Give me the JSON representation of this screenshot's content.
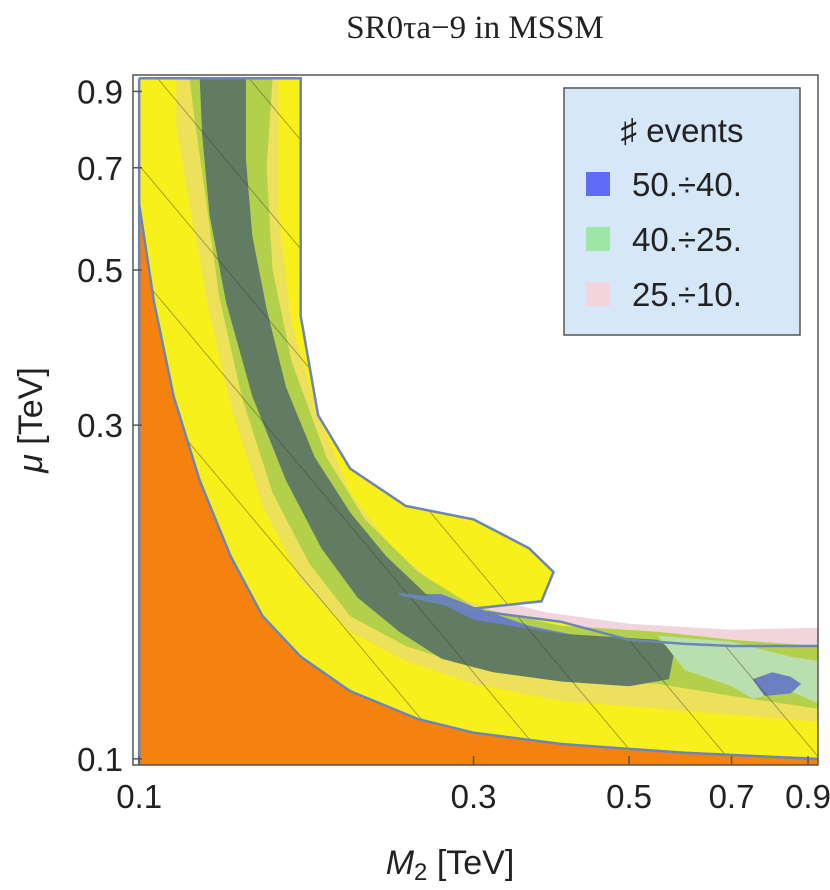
{
  "chart_data": {
    "type": "contour",
    "title": "SR0τa−9 in MSSM",
    "xlabel_symbol": "M",
    "xlabel_sub": "2",
    "xlabel_unit": " [TeV]",
    "ylabel_symbol": "μ",
    "ylabel_unit": " [TeV]",
    "x_scale": "log",
    "y_scale": "log",
    "xlim": [
      0.098,
      0.93
    ],
    "ylim": [
      0.098,
      0.95
    ],
    "x_ticks": [
      {
        "value": 0.1,
        "label": "0.1"
      },
      {
        "value": 0.3,
        "label": "0.3"
      },
      {
        "value": 0.5,
        "label": "0.5"
      },
      {
        "value": 0.7,
        "label": "0.7"
      },
      {
        "value": 0.9,
        "label": "0.9"
      }
    ],
    "y_ticks": [
      {
        "value": 0.1,
        "label": "0.1"
      },
      {
        "value": 0.3,
        "label": "0.3"
      },
      {
        "value": 0.5,
        "label": "0.5"
      },
      {
        "value": 0.7,
        "label": "0.7"
      },
      {
        "value": 0.9,
        "label": "0.9"
      }
    ],
    "legend": {
      "title": "♯ events",
      "position": "top-right",
      "entries": [
        {
          "label": "50.÷40.",
          "color": "#5f6cf5"
        },
        {
          "label": "40.÷25.",
          "color": "#9de7a6"
        },
        {
          "label": "25.÷10.",
          "color": "#f2d4dc"
        }
      ]
    },
    "regions": [
      {
        "name": "excluded-orange",
        "color": "#f5820f",
        "points": [
          [
            0.1,
            0.62
          ],
          [
            0.105,
            0.45
          ],
          [
            0.112,
            0.33
          ],
          [
            0.122,
            0.25
          ],
          [
            0.135,
            0.195
          ],
          [
            0.15,
            0.16
          ],
          [
            0.17,
            0.14
          ],
          [
            0.2,
            0.125
          ],
          [
            0.25,
            0.114
          ],
          [
            0.3,
            0.109
          ],
          [
            0.4,
            0.105
          ],
          [
            0.6,
            0.102
          ],
          [
            0.93,
            0.1
          ],
          [
            0.93,
            0.098
          ],
          [
            0.1,
            0.098
          ]
        ]
      },
      {
        "name": "pink-band",
        "color": "#f2d4dc",
        "points": [
          [
            0.235,
            0.175
          ],
          [
            0.3,
            0.172
          ],
          [
            0.38,
            0.162
          ],
          [
            0.5,
            0.156
          ],
          [
            0.7,
            0.153
          ],
          [
            0.93,
            0.154
          ],
          [
            0.93,
            0.14
          ],
          [
            0.7,
            0.14
          ],
          [
            0.5,
            0.142
          ],
          [
            0.35,
            0.148
          ],
          [
            0.25,
            0.165
          ]
        ]
      },
      {
        "name": "yellow-region",
        "color": "#f7f01a",
        "points": [
          [
            0.1,
            0.94
          ],
          [
            0.17,
            0.94
          ],
          [
            0.17,
            0.43
          ],
          [
            0.18,
            0.31
          ],
          [
            0.2,
            0.26
          ],
          [
            0.24,
            0.23
          ],
          [
            0.3,
            0.22
          ],
          [
            0.36,
            0.2
          ],
          [
            0.39,
            0.185
          ],
          [
            0.375,
            0.168
          ],
          [
            0.3,
            0.164
          ],
          [
            0.26,
            0.17
          ],
          [
            0.235,
            0.172
          ],
          [
            0.3,
            0.163
          ],
          [
            0.4,
            0.157
          ],
          [
            0.5,
            0.148
          ],
          [
            0.6,
            0.146
          ],
          [
            0.7,
            0.145
          ],
          [
            0.93,
            0.145
          ],
          [
            0.93,
            0.1
          ],
          [
            0.6,
            0.102
          ],
          [
            0.4,
            0.105
          ],
          [
            0.3,
            0.109
          ],
          [
            0.25,
            0.114
          ],
          [
            0.2,
            0.125
          ],
          [
            0.17,
            0.14
          ],
          [
            0.15,
            0.16
          ],
          [
            0.135,
            0.195
          ],
          [
            0.122,
            0.25
          ],
          [
            0.112,
            0.33
          ],
          [
            0.105,
            0.45
          ],
          [
            0.1,
            0.62
          ]
        ]
      },
      {
        "name": "light-yellow-wide-band",
        "color": "#ede05a",
        "points": [
          [
            0.113,
            0.94
          ],
          [
            0.158,
            0.94
          ],
          [
            0.158,
            0.6
          ],
          [
            0.165,
            0.42
          ],
          [
            0.18,
            0.31
          ],
          [
            0.2,
            0.24
          ],
          [
            0.23,
            0.2
          ],
          [
            0.27,
            0.175
          ],
          [
            0.34,
            0.158
          ],
          [
            0.45,
            0.15
          ],
          [
            0.6,
            0.147
          ],
          [
            0.75,
            0.141
          ],
          [
            0.93,
            0.142
          ],
          [
            0.93,
            0.113
          ],
          [
            0.75,
            0.115
          ],
          [
            0.55,
            0.118
          ],
          [
            0.4,
            0.121
          ],
          [
            0.3,
            0.128
          ],
          [
            0.24,
            0.138
          ],
          [
            0.2,
            0.152
          ],
          [
            0.17,
            0.18
          ],
          [
            0.15,
            0.23
          ],
          [
            0.135,
            0.32
          ],
          [
            0.125,
            0.45
          ],
          [
            0.118,
            0.62
          ],
          [
            0.113,
            0.8
          ]
        ]
      },
      {
        "name": "green-band",
        "color": "#b3d04a",
        "points": [
          [
            0.118,
            0.94
          ],
          [
            0.155,
            0.94
          ],
          [
            0.152,
            0.7
          ],
          [
            0.155,
            0.5
          ],
          [
            0.165,
            0.37
          ],
          [
            0.185,
            0.27
          ],
          [
            0.21,
            0.22
          ],
          [
            0.25,
            0.185
          ],
          [
            0.3,
            0.165
          ],
          [
            0.4,
            0.155
          ],
          [
            0.55,
            0.152
          ],
          [
            0.7,
            0.148
          ],
          [
            0.93,
            0.145
          ],
          [
            0.93,
            0.118
          ],
          [
            0.7,
            0.123
          ],
          [
            0.55,
            0.128
          ],
          [
            0.4,
            0.131
          ],
          [
            0.3,
            0.135
          ],
          [
            0.24,
            0.145
          ],
          [
            0.2,
            0.16
          ],
          [
            0.175,
            0.19
          ],
          [
            0.155,
            0.24
          ],
          [
            0.14,
            0.33
          ],
          [
            0.13,
            0.46
          ],
          [
            0.124,
            0.65
          ],
          [
            0.12,
            0.82
          ]
        ]
      },
      {
        "name": "blue-overlap",
        "color": "#6c7fc0",
        "points": [
          [
            0.24,
            0.172
          ],
          [
            0.27,
            0.172
          ],
          [
            0.3,
            0.165
          ],
          [
            0.36,
            0.155
          ],
          [
            0.45,
            0.148
          ],
          [
            0.55,
            0.146
          ],
          [
            0.57,
            0.135
          ],
          [
            0.5,
            0.133
          ],
          [
            0.4,
            0.137
          ],
          [
            0.32,
            0.143
          ],
          [
            0.27,
            0.152
          ],
          [
            0.25,
            0.162
          ]
        ]
      },
      {
        "name": "dark-green-core",
        "color": "#627c63",
        "points": [
          [
            0.122,
            0.94
          ],
          [
            0.142,
            0.94
          ],
          [
            0.142,
            0.72
          ],
          [
            0.145,
            0.56
          ],
          [
            0.152,
            0.44
          ],
          [
            0.162,
            0.34
          ],
          [
            0.178,
            0.27
          ],
          [
            0.2,
            0.225
          ],
          [
            0.225,
            0.195
          ],
          [
            0.26,
            0.17
          ],
          [
            0.3,
            0.158
          ],
          [
            0.4,
            0.151
          ],
          [
            0.55,
            0.148
          ],
          [
            0.58,
            0.142
          ],
          [
            0.57,
            0.13
          ],
          [
            0.5,
            0.127
          ],
          [
            0.4,
            0.129
          ],
          [
            0.32,
            0.133
          ],
          [
            0.27,
            0.139
          ],
          [
            0.235,
            0.152
          ],
          [
            0.205,
            0.17
          ],
          [
            0.182,
            0.2
          ],
          [
            0.162,
            0.25
          ],
          [
            0.145,
            0.33
          ],
          [
            0.133,
            0.45
          ],
          [
            0.126,
            0.6
          ],
          [
            0.123,
            0.78
          ]
        ]
      },
      {
        "name": "light-green-right",
        "color": "#b9dfae",
        "points": [
          [
            0.55,
            0.15
          ],
          [
            0.7,
            0.147
          ],
          [
            0.85,
            0.14
          ],
          [
            0.93,
            0.138
          ],
          [
            0.93,
            0.12
          ],
          [
            0.85,
            0.125
          ],
          [
            0.75,
            0.122
          ],
          [
            0.7,
            0.127
          ],
          [
            0.6,
            0.134
          ]
        ]
      },
      {
        "name": "blue-right-spot",
        "color": "#6c7fc0",
        "points": [
          [
            0.75,
            0.13
          ],
          [
            0.8,
            0.133
          ],
          [
            0.85,
            0.131
          ],
          [
            0.88,
            0.128
          ],
          [
            0.85,
            0.124
          ],
          [
            0.78,
            0.123
          ]
        ]
      }
    ],
    "boundary": [
      [
        0.1,
        0.94
      ],
      [
        0.17,
        0.94
      ],
      [
        0.17,
        0.43
      ],
      [
        0.18,
        0.31
      ],
      [
        0.2,
        0.26
      ],
      [
        0.24,
        0.23
      ],
      [
        0.3,
        0.22
      ],
      [
        0.36,
        0.2
      ],
      [
        0.39,
        0.185
      ],
      [
        0.375,
        0.168
      ],
      [
        0.3,
        0.164
      ],
      [
        0.26,
        0.17
      ],
      [
        0.235,
        0.172
      ],
      [
        0.3,
        0.163
      ],
      [
        0.4,
        0.157
      ],
      [
        0.5,
        0.148
      ],
      [
        0.6,
        0.146
      ],
      [
        0.7,
        0.145
      ],
      [
        0.93,
        0.145
      ]
    ],
    "lower_boundary": [
      [
        0.1,
        0.62
      ],
      [
        0.105,
        0.45
      ],
      [
        0.112,
        0.33
      ],
      [
        0.122,
        0.25
      ],
      [
        0.135,
        0.195
      ],
      [
        0.15,
        0.16
      ],
      [
        0.17,
        0.14
      ],
      [
        0.2,
        0.125
      ],
      [
        0.25,
        0.114
      ],
      [
        0.3,
        0.109
      ],
      [
        0.4,
        0.105
      ],
      [
        0.6,
        0.102
      ],
      [
        0.93,
        0.1
      ]
    ]
  }
}
